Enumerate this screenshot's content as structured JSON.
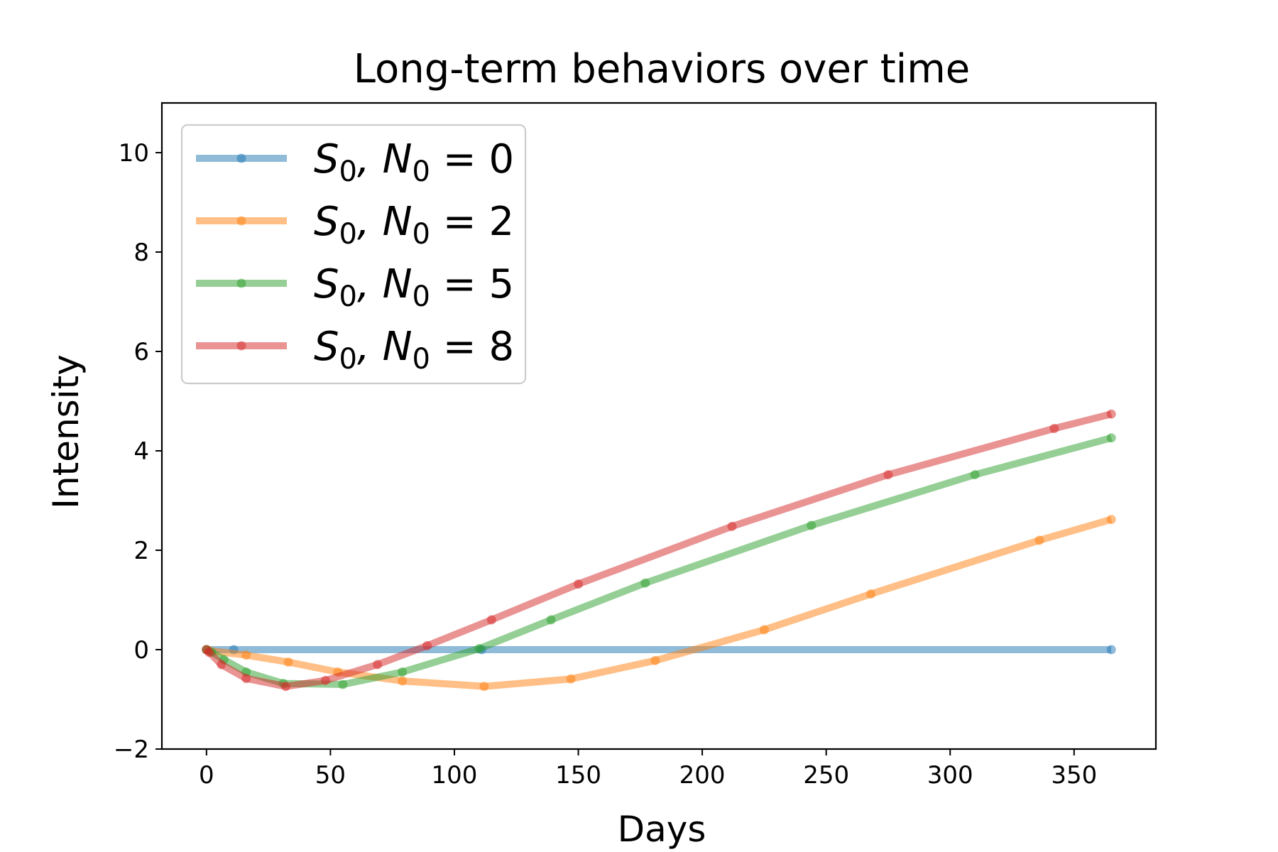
{
  "chart_data": {
    "type": "line",
    "title": "Long-term behaviors over time",
    "xlabel": "Days",
    "ylabel": "Intensity",
    "xlim": [
      -18,
      383
    ],
    "ylim": [
      -2,
      11
    ],
    "xticks": [
      0,
      50,
      100,
      150,
      200,
      250,
      300,
      350
    ],
    "yticks": [
      -2,
      0,
      2,
      4,
      6,
      8,
      10
    ],
    "xtick_labels": [
      "0",
      "50",
      "100",
      "150",
      "200",
      "250",
      "300",
      "350"
    ],
    "ytick_labels": [
      "−2",
      "0",
      "2",
      "4",
      "6",
      "8",
      "10"
    ],
    "grid": false,
    "legend_position": "top-left",
    "series": [
      {
        "name": "S0, N0 = 0",
        "label_main": "S",
        "label_sub1": "0",
        "label_mid": ", N",
        "label_sub2": "0",
        "label_tail": " = 0",
        "color": "#1f77b4",
        "x": [
          0,
          11,
          111,
          365
        ],
        "y": [
          0,
          0,
          0,
          0
        ]
      },
      {
        "name": "S0, N0 = 2",
        "label_main": "S",
        "label_sub1": "0",
        "label_mid": ", N",
        "label_sub2": "0",
        "label_tail": " = 2",
        "color": "#ff7f0e",
        "x": [
          0,
          1,
          16,
          33,
          53,
          79,
          112,
          147,
          181,
          225,
          268,
          336,
          365
        ],
        "y": [
          0,
          -0.02,
          -0.11,
          -0.25,
          -0.45,
          -0.63,
          -0.74,
          -0.59,
          -0.22,
          0.4,
          1.12,
          2.2,
          2.62
        ]
      },
      {
        "name": "S0, N0 = 5",
        "label_main": "S",
        "label_sub1": "0",
        "label_mid": ", N",
        "label_sub2": "0",
        "label_tail": " = 5",
        "color": "#2ca02c",
        "x": [
          0,
          2,
          7,
          16,
          31,
          55,
          79,
          110,
          139,
          177,
          244,
          310,
          365
        ],
        "y": [
          0,
          -0.05,
          -0.2,
          -0.45,
          -0.68,
          -0.7,
          -0.45,
          0.02,
          0.6,
          1.34,
          2.5,
          3.52,
          4.26
        ]
      },
      {
        "name": "S0, N0 = 8",
        "label_main": "S",
        "label_sub1": "0",
        "label_mid": ", N",
        "label_sub2": "0",
        "label_tail": " = 8",
        "color": "#d62728",
        "x": [
          0,
          1,
          6,
          16,
          32,
          48,
          69,
          89,
          115,
          150,
          212,
          275,
          342,
          365
        ],
        "y": [
          0,
          -0.05,
          -0.3,
          -0.58,
          -0.74,
          -0.62,
          -0.3,
          0.08,
          0.6,
          1.32,
          2.48,
          3.52,
          4.45,
          4.74
        ]
      }
    ]
  }
}
